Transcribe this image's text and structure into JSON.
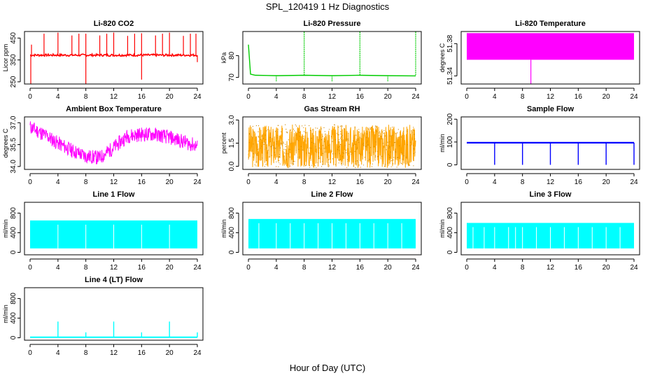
{
  "title": "SPL_120419  1 Hz Diagnostics",
  "xlabel": "Hour of Day (UTC)",
  "chart_data": [
    {
      "id": "co2",
      "type": "line",
      "title": "Li-820 CO2",
      "ylabel": "Licor ppm",
      "color": "#ff0000",
      "xlim": [
        0,
        24
      ],
      "xticks": [
        0,
        4,
        8,
        12,
        16,
        20,
        24
      ],
      "ylim": [
        240,
        480
      ],
      "yticks": [
        250,
        350,
        450
      ],
      "baseline": 372,
      "spikes": [
        [
          0.2,
          420
        ],
        [
          0.1,
          240
        ],
        [
          2,
          470
        ],
        [
          4,
          475
        ],
        [
          6,
          462
        ],
        [
          7,
          470
        ],
        [
          8,
          470
        ],
        [
          8,
          240
        ],
        [
          10,
          462
        ],
        [
          11,
          470
        ],
        [
          12,
          475
        ],
        [
          14,
          460
        ],
        [
          15,
          470
        ],
        [
          16,
          472
        ],
        [
          16,
          260
        ],
        [
          18,
          462
        ],
        [
          19,
          470
        ],
        [
          20,
          475
        ],
        [
          22,
          460
        ],
        [
          23,
          470
        ],
        [
          23.8,
          470
        ],
        [
          24,
          340
        ]
      ],
      "x": [
        0,
        1,
        2,
        3,
        4,
        5,
        6,
        7,
        8,
        9,
        10,
        11,
        12,
        13,
        14,
        15,
        16,
        17,
        18,
        19,
        20,
        21,
        22,
        23,
        24
      ],
      "y": [
        372,
        370,
        374,
        372,
        376,
        372,
        370,
        372,
        376,
        370,
        372,
        374,
        372,
        370,
        374,
        372,
        372,
        370,
        374,
        372,
        374,
        370,
        372,
        374,
        360
      ]
    },
    {
      "id": "pressure",
      "type": "line",
      "title": "Li-820 Pressure",
      "ylabel": "kPa",
      "color": "#00cc00",
      "xlim": [
        0,
        24
      ],
      "xticks": [
        0,
        4,
        8,
        12,
        16,
        20,
        24
      ],
      "ylim": [
        67,
        91
      ],
      "yticks": [
        70,
        80
      ],
      "x": [
        0,
        0.3,
        1,
        4,
        8,
        12,
        16,
        20,
        24
      ],
      "y": [
        85,
        71.5,
        71,
        70.8,
        71,
        70.8,
        71,
        70.8,
        70.7
      ],
      "spikes": [
        [
          4,
          68
        ],
        [
          8,
          91
        ],
        [
          12,
          68
        ],
        [
          16,
          91
        ],
        [
          20,
          68
        ],
        [
          24,
          91
        ]
      ]
    },
    {
      "id": "licor-temp",
      "type": "area",
      "title": "Li-820 Temperature",
      "ylabel": "degrees C",
      "color": "#ff00ff",
      "xlim": [
        0,
        24
      ],
      "xticks": [
        0,
        4,
        8,
        12,
        16,
        20,
        24
      ],
      "ylim": [
        51.33,
        51.395
      ],
      "yticks": [
        "51.34",
        "51.38"
      ],
      "band": [
        51.36,
        51.393
      ],
      "spike": [
        9.2,
        51.33
      ]
    },
    {
      "id": "ambient",
      "type": "line",
      "title": "Ambient Box Temperature",
      "ylabel": "degrees C",
      "color": "#ff00ff",
      "xlim": [
        0,
        24
      ],
      "xticks": [
        0,
        4,
        8,
        12,
        16,
        20,
        24
      ],
      "ylim": [
        33.8,
        37.4
      ],
      "yticks": [
        "34.0",
        "35.5",
        "37.0"
      ],
      "x": [
        0,
        2,
        4,
        6,
        8,
        10,
        12,
        14,
        16,
        18,
        20,
        22,
        24
      ],
      "y": [
        36.7,
        36.2,
        35.6,
        35.1,
        34.7,
        34.6,
        35.3,
        36.1,
        36.2,
        36.2,
        36.0,
        35.7,
        35.4
      ],
      "amp": 0.5
    },
    {
      "id": "rh",
      "type": "scatter",
      "title": "Gas Stream RH",
      "ylabel": "percent",
      "color": "#ffa500",
      "color2": "#cc8400",
      "xlim": [
        0,
        24
      ],
      "xticks": [
        0,
        4,
        8,
        12,
        16,
        20,
        24
      ],
      "ylim": [
        -0.2,
        3.2
      ],
      "yticks": [
        "0.0",
        "1.5",
        "3.0"
      ],
      "center": 1.3,
      "amp": 1.4
    },
    {
      "id": "sample-flow",
      "type": "line",
      "title": "Sample Flow",
      "ylabel": "ml/min",
      "color": "#0000ff",
      "xlim": [
        0,
        24
      ],
      "xticks": [
        0,
        4,
        8,
        12,
        16,
        20,
        24
      ],
      "ylim": [
        -20,
        210
      ],
      "yticks": [
        0,
        100,
        200
      ],
      "x": [
        0,
        24
      ],
      "y": [
        97,
        97
      ],
      "dips": [
        4,
        8,
        12,
        16,
        20,
        24
      ],
      "dip_value": 0
    },
    {
      "id": "line1",
      "type": "area",
      "title": "Line 1 Flow",
      "ylabel": "ml/min",
      "color": "#00ffff",
      "xlim": [
        0,
        24
      ],
      "xticks": [
        0,
        4,
        8,
        12,
        16,
        20,
        24
      ],
      "ylim": [
        -50,
        1020
      ],
      "yticks": [
        0,
        400,
        800
      ],
      "band": [
        80,
        650
      ],
      "gaps": [
        4,
        8,
        12,
        16,
        20,
        24
      ]
    },
    {
      "id": "line2",
      "type": "area",
      "title": "Line 2 Flow",
      "ylabel": "ml/min",
      "color": "#00ffff",
      "xlim": [
        0,
        24
      ],
      "xticks": [
        0,
        4,
        8,
        12,
        16,
        20,
        24
      ],
      "ylim": [
        -50,
        1020
      ],
      "yticks": [
        0,
        400,
        800
      ],
      "band": [
        80,
        680
      ],
      "gaps": [
        1.5,
        4,
        6,
        8,
        10,
        12,
        14,
        16,
        18,
        20,
        22,
        24
      ]
    },
    {
      "id": "line3",
      "type": "area",
      "title": "Line 3 Flow",
      "ylabel": "ml/min",
      "color": "#00ffff",
      "xlim": [
        0,
        24
      ],
      "xticks": [
        0,
        4,
        8,
        12,
        16,
        20,
        24
      ],
      "ylim": [
        -50,
        1020
      ],
      "yticks": [
        0,
        400,
        800
      ],
      "band": [
        80,
        600
      ],
      "gaps": [
        0.9,
        2.5,
        4,
        6,
        7,
        8,
        10,
        12,
        14,
        16,
        18,
        20,
        22,
        24
      ]
    },
    {
      "id": "line4",
      "type": "line",
      "title": "Line 4 (LT) Flow",
      "ylabel": "ml/min",
      "color": "#00ffff",
      "xlim": [
        0,
        24
      ],
      "xticks": [
        0,
        4,
        8,
        12,
        16,
        20,
        24
      ],
      "ylim": [
        -50,
        1020
      ],
      "yticks": [
        0,
        400,
        800
      ],
      "x": [
        0,
        24
      ],
      "y": [
        10,
        10
      ],
      "spikes": [
        [
          4,
          330
        ],
        [
          8,
          110
        ],
        [
          12,
          330
        ],
        [
          16,
          110
        ],
        [
          20,
          330
        ],
        [
          24,
          110
        ]
      ]
    }
  ]
}
